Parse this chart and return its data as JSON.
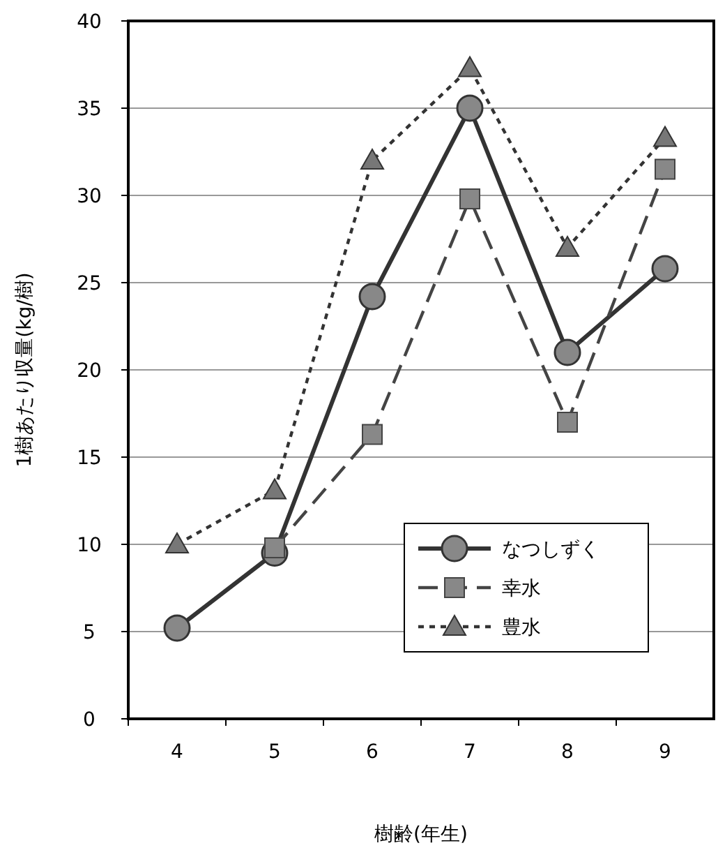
{
  "chart_data": {
    "type": "line",
    "xlabel": "樹齢(年生)",
    "ylabel": "1樹あたり収量(kg/樹)",
    "categories": [
      "4",
      "5",
      "6",
      "7",
      "8",
      "9"
    ],
    "ylim": [
      0,
      40
    ],
    "yticks": [
      0,
      5,
      10,
      15,
      20,
      25,
      30,
      35,
      40
    ],
    "grid": "y",
    "legend": "bottom right",
    "series": [
      {
        "name": "なつしずく",
        "color": "#333333",
        "marker": "circle",
        "line_style": "solid",
        "values": [
          5.2,
          9.5,
          24.2,
          35,
          21,
          25.8
        ]
      },
      {
        "name": "幸水",
        "color": "#444444",
        "marker": "square",
        "line_style": "dashed",
        "values": [
          null,
          9.8,
          16.3,
          29.8,
          17,
          31.5
        ]
      },
      {
        "name": "豊水",
        "color": "#333333",
        "marker": "triangle",
        "line_style": "dotted",
        "values": [
          10,
          13.1,
          32,
          37.3,
          27,
          33.3
        ]
      }
    ]
  }
}
